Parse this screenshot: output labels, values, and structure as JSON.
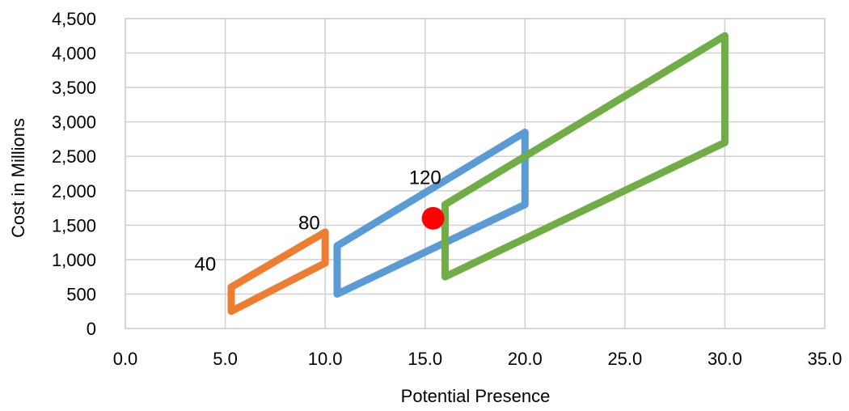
{
  "chart_data": {
    "type": "line",
    "title": "",
    "xlabel": "Potential Presence",
    "ylabel": "Cost in Millions",
    "xlim": [
      0,
      35
    ],
    "ylim": [
      0,
      4500
    ],
    "x_ticks": [
      0,
      5,
      10,
      15,
      20,
      25,
      30,
      35
    ],
    "x_tick_labels": [
      "0.0",
      "5.0",
      "10.0",
      "15.0",
      "20.0",
      "25.0",
      "30.0",
      "35.0"
    ],
    "y_ticks": [
      0,
      500,
      1000,
      1500,
      2000,
      2500,
      3000,
      3500,
      4000,
      4500
    ],
    "y_tick_labels": [
      "0",
      "500",
      "1,000",
      "1,500",
      "2,000",
      "2,500",
      "3,000",
      "3,500",
      "4,000",
      "4,500"
    ],
    "grid": true,
    "legend": "none",
    "series": [
      {
        "color": "#ED7D31",
        "x": [
          5.3,
          10.0,
          10.0,
          5.3,
          5.3
        ],
        "y": [
          600,
          1400,
          950,
          250,
          600
        ]
      },
      {
        "color": "#5B9BD5",
        "x": [
          10.6,
          20.0,
          20.0,
          10.6,
          10.6
        ],
        "y": [
          1200,
          2850,
          1800,
          500,
          1200
        ]
      },
      {
        "color": "#70AD47",
        "x": [
          16.0,
          30.0,
          30.0,
          16.0,
          16.0
        ],
        "y": [
          1800,
          4250,
          2700,
          750,
          1800
        ]
      }
    ],
    "point": {
      "x": 15.4,
      "y": 1600,
      "color": "#FF0000"
    },
    "annotations": [
      {
        "text": "40",
        "x": 4.0,
        "y": 840
      },
      {
        "text": "80",
        "x": 9.2,
        "y": 1440
      },
      {
        "text": "120",
        "x": 15.0,
        "y": 2100
      }
    ]
  }
}
